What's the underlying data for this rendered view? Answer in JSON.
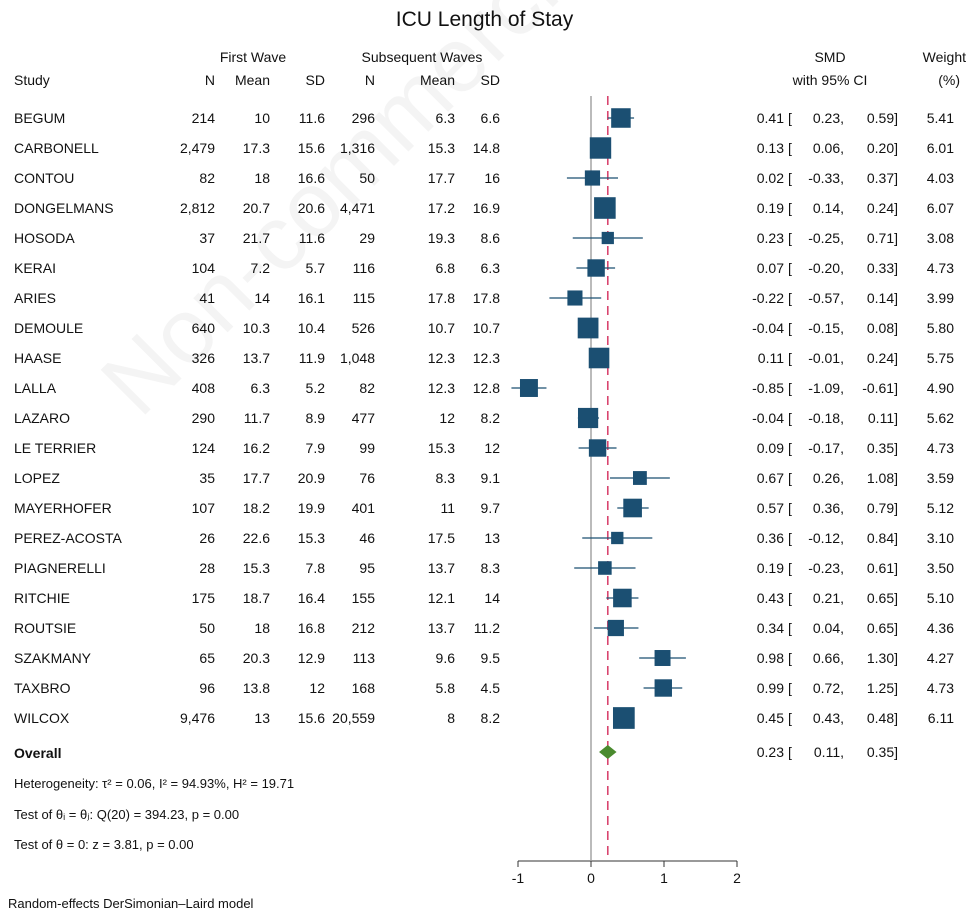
{
  "watermark": "Non-commercial",
  "chart_data": {
    "type": "forest",
    "title": "ICU Length of Stay",
    "group_headers": [
      "First Wave",
      "Subsequent Waves"
    ],
    "columns": {
      "study": "Study",
      "n1": "N",
      "mean1": "Mean",
      "sd1": "SD",
      "n2": "N",
      "mean2": "Mean",
      "sd2": "SD",
      "smd": "SMD",
      "ci": "with 95% CI",
      "weight": "Weight",
      "weight_unit": "(%)"
    },
    "colors": {
      "marker": "#1b4f72",
      "line": "#1b4f72",
      "overall": "#4a8a2e",
      "ref": "#777777",
      "overall_line": "#d9456e"
    },
    "xlim": [
      -1.1,
      2
    ],
    "xticks": [
      "-1",
      "0",
      "1",
      "2"
    ],
    "xtick_values": [
      -1,
      0,
      1,
      2
    ],
    "overall_smd": 0.23,
    "studies": [
      {
        "name": "BEGUM",
        "n1": "214",
        "mean1": "10",
        "sd1": "11.6",
        "n2": "296",
        "mean2": "6.3",
        "sd2": "6.6",
        "smd": 0.41,
        "lo": 0.23,
        "hi": 0.59,
        "smd_text": "0.41",
        "lo_text": "0.23",
        "hi_text": "0.59",
        "weight": "5.41"
      },
      {
        "name": "CARBONELL",
        "n1": "2,479",
        "mean1": "17.3",
        "sd1": "15.6",
        "n2": "1,316",
        "mean2": "15.3",
        "sd2": "14.8",
        "smd": 0.13,
        "lo": 0.06,
        "hi": 0.2,
        "smd_text": "0.13",
        "lo_text": "0.06",
        "hi_text": "0.20",
        "weight": "6.01"
      },
      {
        "name": "CONTOU",
        "n1": "82",
        "mean1": "18",
        "sd1": "16.6",
        "n2": "50",
        "mean2": "17.7",
        "sd2": "16",
        "smd": 0.02,
        "lo": -0.33,
        "hi": 0.37,
        "smd_text": "0.02",
        "lo_text": "-0.33",
        "hi_text": "0.37",
        "weight": "4.03"
      },
      {
        "name": "DONGELMANS",
        "n1": "2,812",
        "mean1": "20.7",
        "sd1": "20.6",
        "n2": "4,471",
        "mean2": "17.2",
        "sd2": "16.9",
        "smd": 0.19,
        "lo": 0.14,
        "hi": 0.24,
        "smd_text": "0.19",
        "lo_text": "0.14",
        "hi_text": "0.24",
        "weight": "6.07"
      },
      {
        "name": "HOSODA",
        "n1": "37",
        "mean1": "21.7",
        "sd1": "11.6",
        "n2": "29",
        "mean2": "19.3",
        "sd2": "8.6",
        "smd": 0.23,
        "lo": -0.25,
        "hi": 0.71,
        "smd_text": "0.23",
        "lo_text": "-0.25",
        "hi_text": "0.71",
        "weight": "3.08"
      },
      {
        "name": "KERAI",
        "n1": "104",
        "mean1": "7.2",
        "sd1": "5.7",
        "n2": "116",
        "mean2": "6.8",
        "sd2": "6.3",
        "smd": 0.07,
        "lo": -0.2,
        "hi": 0.33,
        "smd_text": "0.07",
        "lo_text": "-0.20",
        "hi_text": "0.33",
        "weight": "4.73"
      },
      {
        "name": "ARIES",
        "n1": "41",
        "mean1": "14",
        "sd1": "16.1",
        "n2": "115",
        "mean2": "17.8",
        "sd2": "17.8",
        "smd": -0.22,
        "lo": -0.57,
        "hi": 0.14,
        "smd_text": "-0.22",
        "lo_text": "-0.57",
        "hi_text": "0.14",
        "weight": "3.99"
      },
      {
        "name": "DEMOULE",
        "n1": "640",
        "mean1": "10.3",
        "sd1": "10.4",
        "n2": "526",
        "mean2": "10.7",
        "sd2": "10.7",
        "smd": -0.04,
        "lo": -0.15,
        "hi": 0.08,
        "smd_text": "-0.04",
        "lo_text": "-0.15",
        "hi_text": "0.08",
        "weight": "5.80"
      },
      {
        "name": "HAASE",
        "n1": "326",
        "mean1": "13.7",
        "sd1": "11.9",
        "n2": "1,048",
        "mean2": "12.3",
        "sd2": "12.3",
        "smd": 0.11,
        "lo": -0.01,
        "hi": 0.24,
        "smd_text": "0.11",
        "lo_text": "-0.01",
        "hi_text": "0.24",
        "weight": "5.75"
      },
      {
        "name": "LALLA",
        "n1": "408",
        "mean1": "6.3",
        "sd1": "5.2",
        "n2": "82",
        "mean2": "12.3",
        "sd2": "12.8",
        "smd": -0.85,
        "lo": -1.09,
        "hi": -0.61,
        "smd_text": "-0.85",
        "lo_text": "-1.09",
        "hi_text": "-0.61",
        "weight": "4.90"
      },
      {
        "name": "LAZARO",
        "n1": "290",
        "mean1": "11.7",
        "sd1": "8.9",
        "n2": "477",
        "mean2": "12",
        "sd2": "8.2",
        "smd": -0.04,
        "lo": -0.18,
        "hi": 0.11,
        "smd_text": "-0.04",
        "lo_text": "-0.18",
        "hi_text": "0.11",
        "weight": "5.62"
      },
      {
        "name": "LE TERRIER",
        "n1": "124",
        "mean1": "16.2",
        "sd1": "7.9",
        "n2": "99",
        "mean2": "15.3",
        "sd2": "12",
        "smd": 0.09,
        "lo": -0.17,
        "hi": 0.35,
        "smd_text": "0.09",
        "lo_text": "-0.17",
        "hi_text": "0.35",
        "weight": "4.73"
      },
      {
        "name": "LOPEZ",
        "n1": "35",
        "mean1": "17.7",
        "sd1": "20.9",
        "n2": "76",
        "mean2": "8.3",
        "sd2": "9.1",
        "smd": 0.67,
        "lo": 0.26,
        "hi": 1.08,
        "smd_text": "0.67",
        "lo_text": "0.26",
        "hi_text": "1.08",
        "weight": "3.59"
      },
      {
        "name": "MAYERHOFER",
        "n1": "107",
        "mean1": "18.2",
        "sd1": "19.9",
        "n2": "401",
        "mean2": "11",
        "sd2": "9.7",
        "smd": 0.57,
        "lo": 0.36,
        "hi": 0.79,
        "smd_text": "0.57",
        "lo_text": "0.36",
        "hi_text": "0.79",
        "weight": "5.12"
      },
      {
        "name": "PEREZ-ACOSTA",
        "n1": "26",
        "mean1": "22.6",
        "sd1": "15.3",
        "n2": "46",
        "mean2": "17.5",
        "sd2": "13",
        "smd": 0.36,
        "lo": -0.12,
        "hi": 0.84,
        "smd_text": "0.36",
        "lo_text": "-0.12",
        "hi_text": "0.84",
        "weight": "3.10"
      },
      {
        "name": "PIAGNERELLI",
        "n1": "28",
        "mean1": "15.3",
        "sd1": "7.8",
        "n2": "95",
        "mean2": "13.7",
        "sd2": "8.3",
        "smd": 0.19,
        "lo": -0.23,
        "hi": 0.61,
        "smd_text": "0.19",
        "lo_text": "-0.23",
        "hi_text": "0.61",
        "weight": "3.50"
      },
      {
        "name": "RITCHIE",
        "n1": "175",
        "mean1": "18.7",
        "sd1": "16.4",
        "n2": "155",
        "mean2": "12.1",
        "sd2": "14",
        "smd": 0.43,
        "lo": 0.21,
        "hi": 0.65,
        "smd_text": "0.43",
        "lo_text": "0.21",
        "hi_text": "0.65",
        "weight": "5.10"
      },
      {
        "name": "ROUTSIE",
        "n1": "50",
        "mean1": "18",
        "sd1": "16.8",
        "n2": "212",
        "mean2": "13.7",
        "sd2": "11.2",
        "smd": 0.34,
        "lo": 0.04,
        "hi": 0.65,
        "smd_text": "0.34",
        "lo_text": "0.04",
        "hi_text": "0.65",
        "weight": "4.36"
      },
      {
        "name": "SZAKMANY",
        "n1": "65",
        "mean1": "20.3",
        "sd1": "12.9",
        "n2": "113",
        "mean2": "9.6",
        "sd2": "9.5",
        "smd": 0.98,
        "lo": 0.66,
        "hi": 1.3,
        "smd_text": "0.98",
        "lo_text": "0.66",
        "hi_text": "1.30",
        "weight": "4.27"
      },
      {
        "name": "TAXBRO",
        "n1": "96",
        "mean1": "13.8",
        "sd1": "12",
        "n2": "168",
        "mean2": "5.8",
        "sd2": "4.5",
        "smd": 0.99,
        "lo": 0.72,
        "hi": 1.25,
        "smd_text": "0.99",
        "lo_text": "0.72",
        "hi_text": "1.25",
        "weight": "4.73"
      },
      {
        "name": "WILCOX",
        "n1": "9,476",
        "mean1": "13",
        "sd1": "15.6",
        "n2": "20,559",
        "mean2": "8",
        "sd2": "8.2",
        "smd": 0.45,
        "lo": 0.43,
        "hi": 0.48,
        "smd_text": "0.45",
        "lo_text": "0.43",
        "hi_text": "0.48",
        "weight": "6.11"
      }
    ],
    "overall": {
      "label": "Overall",
      "smd": 0.23,
      "lo": 0.11,
      "hi": 0.35,
      "smd_text": "0.23",
      "lo_text": "0.11",
      "hi_text": "0.35"
    },
    "heterogeneity": "Heterogeneity: τ² = 0.06, I² = 94.93%, H² = 19.71",
    "test_homogeneity": "Test of θᵢ = θⱼ: Q(20) = 394.23, p = 0.00",
    "test_effect": "Test of θ = 0: z = 3.81, p = 0.00",
    "model_note": "Random-effects DerSimonian–Laird model"
  }
}
